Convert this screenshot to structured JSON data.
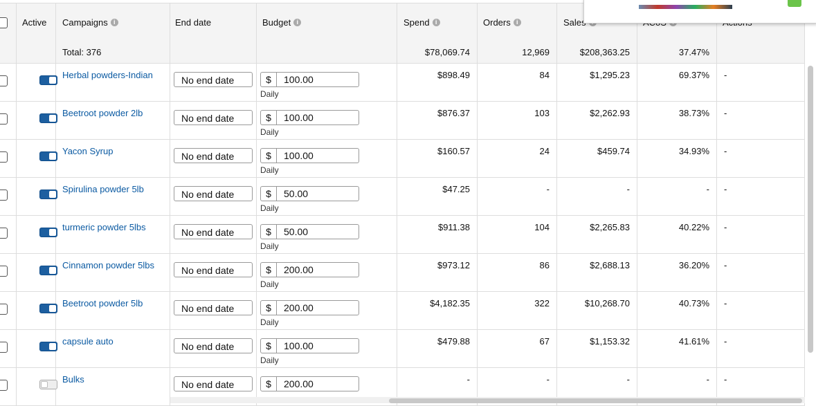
{
  "header": {
    "active": "Active",
    "campaigns": "Campaigns",
    "end_date": "End date",
    "budget": "Budget",
    "spend": "Spend",
    "orders": "Orders",
    "sales": "Sales",
    "acos": "ACoS",
    "actions": "Actions"
  },
  "total": {
    "label": "Total: 376",
    "spend": "$78,069.74",
    "orders": "12,969",
    "sales": "$208,363.25",
    "acos": "37.47%"
  },
  "rows": [
    {
      "name": "Herbal powders-Indian",
      "active": true,
      "end_date": "No end date",
      "currency": "$",
      "budget": "100.00",
      "budget_type": "Daily",
      "spend": "$898.49",
      "orders": "84",
      "sales": "$1,295.23",
      "acos": "69.37%",
      "actions": "-"
    },
    {
      "name": "Beetroot powder 2lb",
      "active": true,
      "end_date": "No end date",
      "currency": "$",
      "budget": "100.00",
      "budget_type": "Daily",
      "spend": "$876.37",
      "orders": "103",
      "sales": "$2,262.93",
      "acos": "38.73%",
      "actions": "-"
    },
    {
      "name": "Yacon Syrup",
      "active": true,
      "end_date": "No end date",
      "currency": "$",
      "budget": "100.00",
      "budget_type": "Daily",
      "spend": "$160.57",
      "orders": "24",
      "sales": "$459.74",
      "acos": "34.93%",
      "actions": "-"
    },
    {
      "name": "Spirulina powder 5lb",
      "active": true,
      "end_date": "No end date",
      "currency": "$",
      "budget": "50.00",
      "budget_type": "Daily",
      "spend": "$47.25",
      "orders": "-",
      "sales": "-",
      "acos": "-",
      "actions": "-"
    },
    {
      "name": "turmeric powder 5lbs",
      "active": true,
      "end_date": "No end date",
      "currency": "$",
      "budget": "50.00",
      "budget_type": "Daily",
      "spend": "$911.38",
      "orders": "104",
      "sales": "$2,265.83",
      "acos": "40.22%",
      "actions": "-"
    },
    {
      "name": "Cinnamon powder 5lbs",
      "active": true,
      "end_date": "No end date",
      "currency": "$",
      "budget": "200.00",
      "budget_type": "Daily",
      "spend": "$973.12",
      "orders": "86",
      "sales": "$2,688.13",
      "acos": "36.20%",
      "actions": "-"
    },
    {
      "name": "Beetroot powder 5lb",
      "active": true,
      "end_date": "No end date",
      "currency": "$",
      "budget": "200.00",
      "budget_type": "Daily",
      "spend": "$4,182.35",
      "orders": "322",
      "sales": "$10,268.70",
      "acos": "40.73%",
      "actions": "-"
    },
    {
      "name": "capsule auto",
      "active": true,
      "end_date": "No end date",
      "currency": "$",
      "budget": "100.00",
      "budget_type": "Daily",
      "spend": "$479.88",
      "orders": "67",
      "sales": "$1,153.32",
      "acos": "41.61%",
      "actions": "-"
    },
    {
      "name": "Bulks",
      "active": false,
      "end_date": "No end date",
      "currency": "$",
      "budget": "200.00",
      "budget_type": "",
      "spend": "-",
      "orders": "-",
      "sales": "-",
      "acos": "-",
      "actions": "-"
    }
  ]
}
